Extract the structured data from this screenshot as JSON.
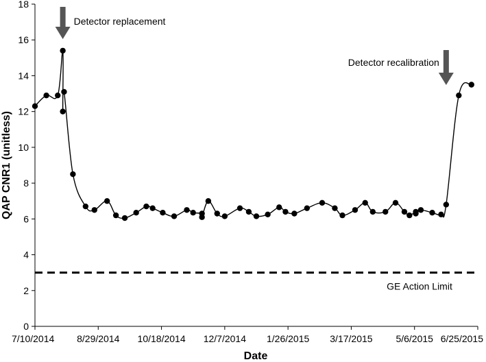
{
  "chart_data": {
    "type": "line",
    "title": "",
    "xlabel": "Date",
    "ylabel": "QAP CNR1 (unitless)",
    "xlim": [
      "2014-07-10",
      "2015-06-25"
    ],
    "ylim": [
      0,
      18
    ],
    "x_ticks": [
      "7/10/2014",
      "8/29/2014",
      "10/18/2014",
      "12/7/2014",
      "1/26/2015",
      "3/17/2015",
      "5/6/2015",
      "6/25/2015"
    ],
    "y_ticks": [
      0,
      2,
      4,
      6,
      8,
      10,
      12,
      14,
      16,
      18
    ],
    "grid": false,
    "series": [
      {
        "name": "",
        "color": "#000000",
        "marker": "circle",
        "smooth": true,
        "x": [
          "2014-07-10",
          "2014-07-19",
          "2014-07-28",
          "2014-08-01",
          "2014-08-01",
          "2014-08-02",
          "2014-08-09",
          "2014-08-19",
          "2014-08-26",
          "2014-09-05",
          "2014-09-12",
          "2014-09-19",
          "2014-09-28",
          "2014-10-06",
          "2014-10-11",
          "2014-10-19",
          "2014-10-28",
          "2014-11-07",
          "2014-11-12",
          "2014-11-19",
          "2014-11-19",
          "2014-11-24",
          "2014-12-01",
          "2014-12-07",
          "2014-12-19",
          "2014-12-26",
          "2015-01-01",
          "2015-01-10",
          "2015-01-19",
          "2015-01-24",
          "2015-01-31",
          "2015-02-10",
          "2015-02-22",
          "2015-03-04",
          "2015-03-10",
          "2015-03-20",
          "2015-03-28",
          "2015-04-03",
          "2015-04-13",
          "2015-04-21",
          "2015-04-28",
          "2015-05-02",
          "2015-05-07",
          "2015-05-07",
          "2015-05-11",
          "2015-05-20",
          "2015-05-27",
          "2015-05-31",
          "2015-06-10",
          "2015-06-20"
        ],
        "y": [
          12.3,
          12.9,
          12.9,
          15.4,
          12.0,
          13.1,
          8.5,
          6.7,
          6.5,
          7.0,
          6.2,
          6.05,
          6.35,
          6.7,
          6.6,
          6.35,
          6.15,
          6.5,
          6.35,
          6.3,
          6.1,
          7.0,
          6.3,
          6.15,
          6.6,
          6.4,
          6.15,
          6.25,
          6.65,
          6.4,
          6.3,
          6.6,
          6.9,
          6.6,
          6.2,
          6.5,
          6.9,
          6.4,
          6.4,
          6.9,
          6.4,
          6.2,
          6.4,
          6.3,
          6.5,
          6.35,
          6.25,
          6.8,
          12.9,
          13.5
        ]
      }
    ],
    "reference_lines": [
      {
        "label": "GE Action Limit",
        "y": 3,
        "style": "dashed"
      }
    ],
    "annotations": [
      {
        "text": "Detector replacement",
        "x": "2014-08-01",
        "marker": "down-arrow"
      },
      {
        "text": "Detector recalibration",
        "x": "2015-05-31",
        "marker": "down-arrow"
      }
    ],
    "extra_points_note": ""
  }
}
